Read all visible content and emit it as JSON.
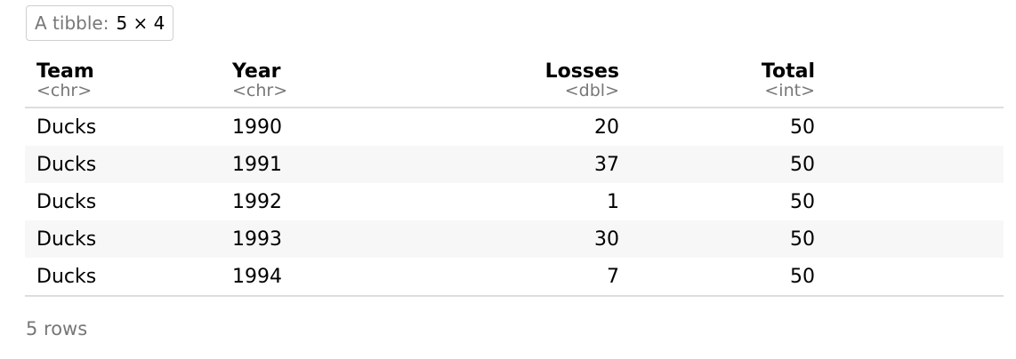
{
  "caption": {
    "label": "A tibble:",
    "dims": "5 × 4"
  },
  "columns": [
    {
      "name": "Team",
      "type": "<chr>",
      "align": "left"
    },
    {
      "name": "Year",
      "type": "<chr>",
      "align": "left"
    },
    {
      "name": "Losses",
      "type": "<dbl>",
      "align": "right"
    },
    {
      "name": "Total",
      "type": "<int>",
      "align": "right"
    }
  ],
  "rows": [
    [
      "Ducks",
      "1990",
      "20",
      "50"
    ],
    [
      "Ducks",
      "1991",
      "37",
      "50"
    ],
    [
      "Ducks",
      "1992",
      "1",
      "50"
    ],
    [
      "Ducks",
      "1993",
      "30",
      "50"
    ],
    [
      "Ducks",
      "1994",
      "7",
      "50"
    ]
  ],
  "footer": {
    "row_count": "5 rows"
  },
  "colors": {
    "stripe": "#f7f7f7",
    "muted_text": "#777777",
    "rule": "#dddddd"
  }
}
